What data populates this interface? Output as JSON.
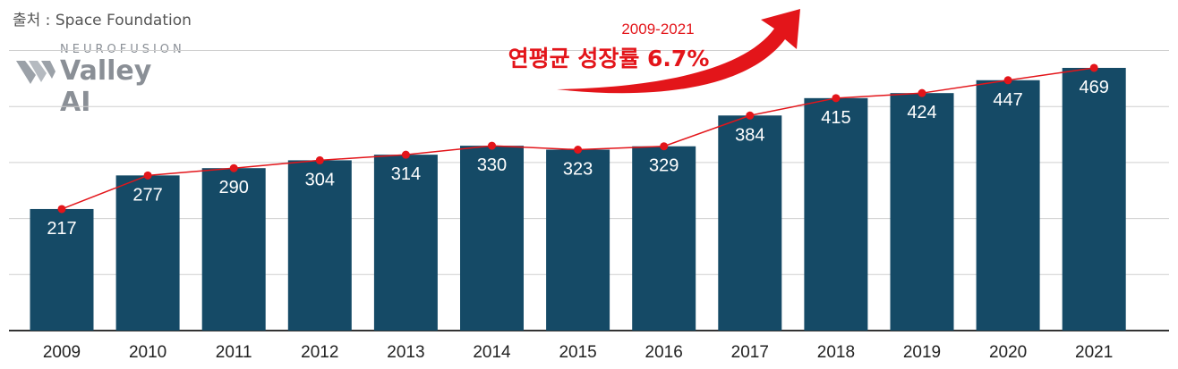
{
  "source": "출처 : Space Foundation",
  "logo": {
    "top": "NEUROFUSION",
    "main": "Valley AI",
    "icon": "valley-ai-logo-icon"
  },
  "annotation": {
    "range": "2009-2021",
    "text": "연평균 성장률 6.7%",
    "arrow_color": "#e3151a"
  },
  "colors": {
    "bar": "#154a66",
    "line": "#e3151a",
    "grid": "#cfcfcf"
  },
  "chart_data": {
    "type": "bar",
    "categories": [
      "2009",
      "2010",
      "2011",
      "2012",
      "2013",
      "2014",
      "2015",
      "2016",
      "2017",
      "2018",
      "2019",
      "2020",
      "2021"
    ],
    "values": [
      217,
      277,
      290,
      304,
      314,
      330,
      323,
      329,
      384,
      415,
      424,
      447,
      469
    ],
    "overlay": "line-with-markers",
    "title": "",
    "xlabel": "",
    "ylabel": "",
    "grid": true,
    "data_labels": true
  }
}
